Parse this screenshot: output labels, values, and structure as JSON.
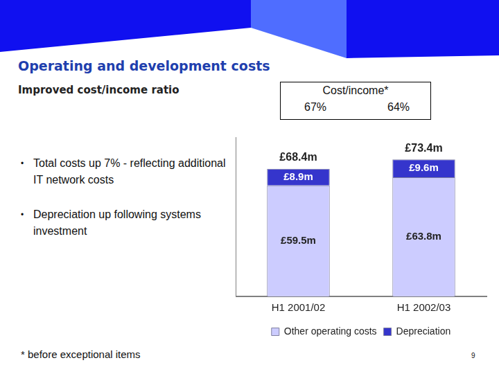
{
  "slide": {
    "title": "Operating and development costs",
    "subtitle": "Improved cost/income ratio",
    "bullets": [
      "Total costs up 7% - reflecting additional IT network costs",
      "Depreciation up following systems investment"
    ],
    "footnote": "* before exceptional items",
    "page_number": "9"
  },
  "chart_data": {
    "type": "bar",
    "stacked": true,
    "categories": [
      "H1 2001/02",
      "H1 2002/03"
    ],
    "series": [
      {
        "name": "Other operating costs",
        "color": "#ccccff",
        "values": [
          59.5,
          63.8
        ],
        "value_labels": [
          "£59.5m",
          "£63.8m"
        ]
      },
      {
        "name": "Depreciation",
        "color": "#3535cc",
        "values": [
          8.9,
          9.6
        ],
        "value_labels": [
          "£8.9m",
          "£9.6m"
        ]
      }
    ],
    "totals": [
      68.4,
      73.4
    ],
    "total_labels": [
      "£68.4m",
      "£73.4m"
    ],
    "cost_income": {
      "title": "Cost/income*",
      "values": [
        67,
        64
      ],
      "value_labels": [
        "67%",
        "64%"
      ]
    },
    "ylim": [
      0,
      85
    ],
    "grid": false,
    "legend": "bottom",
    "data_labels": true,
    "tick_labels": "x"
  }
}
